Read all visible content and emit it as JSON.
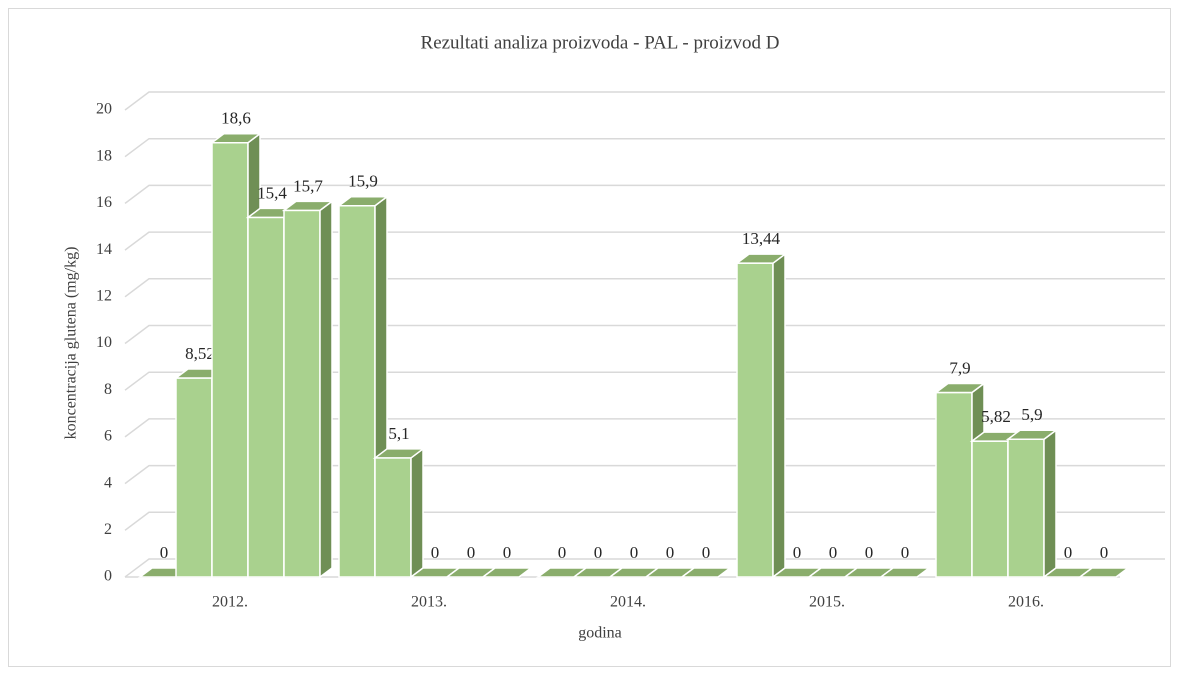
{
  "chart_data": {
    "type": "bar3d",
    "title": "Rezultati analiza proizvoda - PAL - proizvod D",
    "x_label": "godina",
    "y_label": "koncentracija glutena (mg/kg)",
    "categories": [
      "2012.",
      "2013.",
      "2014.",
      "2015.",
      "2016."
    ],
    "color": "#a9d18e",
    "series": [
      {
        "values": [
          0,
          15.9,
          0,
          13.44,
          7.9
        ],
        "value_labels": [
          "0",
          "15,9",
          "0",
          "13,44",
          "7,9"
        ]
      },
      {
        "values": [
          8.52,
          5.1,
          0,
          0,
          5.82
        ],
        "value_labels": [
          "8,52",
          "5,1",
          "0",
          "0",
          "5,82"
        ]
      },
      {
        "values": [
          18.6,
          0,
          0,
          0,
          5.9
        ],
        "value_labels": [
          "18,6",
          "0",
          "0",
          "0",
          "5,9"
        ]
      },
      {
        "values": [
          15.4,
          0,
          0,
          0,
          0
        ],
        "value_labels": [
          "15,4",
          "0",
          "0",
          "0",
          "0"
        ]
      },
      {
        "values": [
          15.7,
          0,
          0,
          0,
          0
        ],
        "value_labels": [
          "15,7",
          "0",
          "0",
          "0",
          "0"
        ]
      }
    ],
    "ylim": [
      0,
      20
    ],
    "yticks": [
      0,
      2,
      4,
      6,
      8,
      10,
      12,
      14,
      16,
      18,
      20
    ],
    "grid": true
  }
}
